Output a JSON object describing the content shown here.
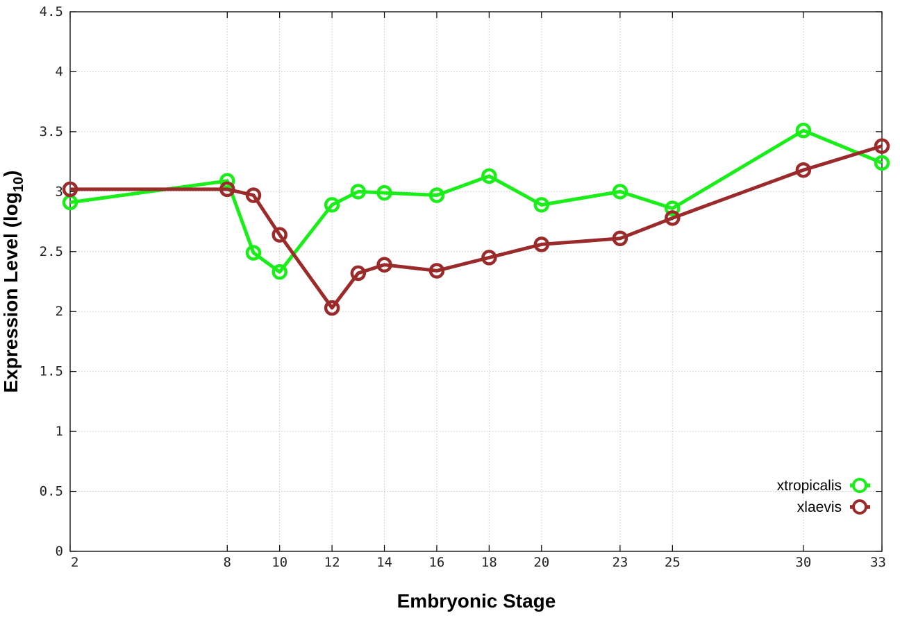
{
  "chart_data": {
    "type": "line",
    "xlabel": "Embryonic Stage",
    "ylabel_main": "Expression Level (log",
    "ylabel_sub": "10",
    "ylabel_close": ")",
    "x_ticks": [
      "2",
      "8",
      "10",
      "12",
      "14",
      "16",
      "18",
      "20",
      "23",
      "25",
      "30",
      "33"
    ],
    "y_ticks": [
      "0",
      "0.5",
      "1",
      "1.5",
      "2",
      "2.5",
      "3",
      "3.5",
      "4",
      "4.5"
    ],
    "ylim": [
      0,
      4.5
    ],
    "grid": true,
    "legend_position": "bottom-right",
    "x": [
      "2",
      "8",
      "9",
      "10",
      "12",
      "13",
      "14",
      "16",
      "18",
      "20",
      "23",
      "25",
      "30",
      "33"
    ],
    "series": [
      {
        "name": "xtropicalis",
        "color": "#19ee19",
        "values": [
          2.91,
          3.09,
          2.49,
          2.33,
          2.89,
          3.0,
          2.99,
          2.97,
          3.13,
          2.89,
          3.0,
          2.86,
          3.51,
          3.24
        ]
      },
      {
        "name": "xlaevis",
        "color": "#9b2a2a",
        "values": [
          3.02,
          3.02,
          2.97,
          2.64,
          2.03,
          2.32,
          2.39,
          2.34,
          2.45,
          2.56,
          2.61,
          2.78,
          3.18,
          3.38
        ]
      }
    ]
  }
}
